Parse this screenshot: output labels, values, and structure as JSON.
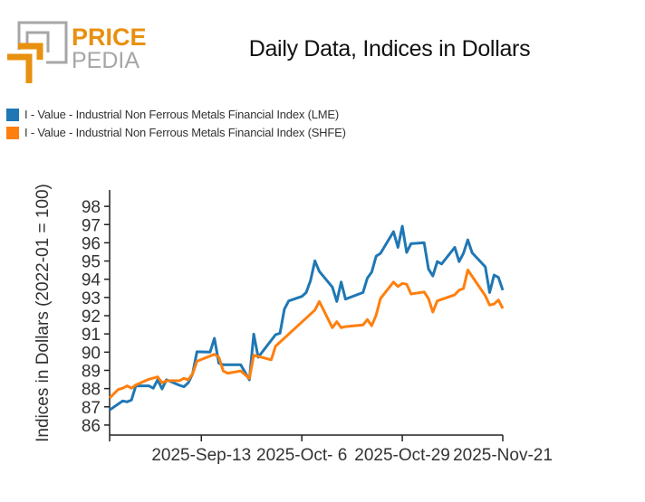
{
  "brand": {
    "line1": "PRICE",
    "line2": "PEDIA",
    "orange": "#e8900f",
    "gray": "#a6a6a6"
  },
  "chart_data": {
    "type": "line",
    "title": "Daily Data, Indices in Dollars",
    "xlabel": "",
    "ylabel": "Indices in Dollars (2022-01 = 100)",
    "xlim": [
      "2025-08-23",
      "2025-11-21"
    ],
    "ylim": [
      85.45,
      98.9
    ],
    "x_ticks": [
      "2025-Sep-13",
      "2025-Oct- 6",
      "2025-Oct-29",
      "2025-Nov-21"
    ],
    "x_tick_dates": [
      "2025-09-13",
      "2025-10-06",
      "2025-10-29",
      "2025-11-21"
    ],
    "y_ticks": [
      86,
      87,
      88,
      89,
      90,
      91,
      92,
      93,
      94,
      95,
      96,
      97,
      98
    ],
    "grid": false,
    "legend_position": "top-left",
    "series": [
      {
        "name": "I - Value - Industrial Non Ferrous Metals Financial Index (LME)",
        "color": "#1f77b4",
        "x": [
          "2025-08-23",
          "2025-08-26",
          "2025-08-27",
          "2025-08-28",
          "2025-08-29",
          "2025-09-01",
          "2025-09-02",
          "2025-09-03",
          "2025-09-04",
          "2025-09-05",
          "2025-09-08",
          "2025-09-09",
          "2025-09-10",
          "2025-09-11",
          "2025-09-12",
          "2025-09-15",
          "2025-09-16",
          "2025-09-17",
          "2025-09-18",
          "2025-09-22",
          "2025-09-24",
          "2025-09-25",
          "2025-09-26",
          "2025-09-30",
          "2025-10-01",
          "2025-10-02",
          "2025-10-03",
          "2025-10-06",
          "2025-10-07",
          "2025-10-08",
          "2025-10-09",
          "2025-10-10",
          "2025-10-13",
          "2025-10-14",
          "2025-10-15",
          "2025-10-16",
          "2025-10-20",
          "2025-10-21",
          "2025-10-22",
          "2025-10-23",
          "2025-10-24",
          "2025-10-27",
          "2025-10-28",
          "2025-10-29",
          "2025-10-30",
          "2025-10-31",
          "2025-11-03",
          "2025-11-04",
          "2025-11-05",
          "2025-11-06",
          "2025-11-07",
          "2025-11-10",
          "2025-11-11",
          "2025-11-12",
          "2025-11-13",
          "2025-11-14",
          "2025-11-17",
          "2025-11-18",
          "2025-11-19",
          "2025-11-20",
          "2025-11-21"
        ],
        "y": [
          86.83,
          87.32,
          87.27,
          87.37,
          88.15,
          88.15,
          88.02,
          88.48,
          87.98,
          88.48,
          88.18,
          88.1,
          88.32,
          88.81,
          90.02,
          90.0,
          90.76,
          89.39,
          89.31,
          89.31,
          88.48,
          90.99,
          89.72,
          90.96,
          91.04,
          92.36,
          92.81,
          93.06,
          93.27,
          93.93,
          95.01,
          94.43,
          93.57,
          92.78,
          93.85,
          92.91,
          93.27,
          94.06,
          94.39,
          95.26,
          95.42,
          96.61,
          95.75,
          96.91,
          95.47,
          95.95,
          96.0,
          94.56,
          94.18,
          94.97,
          94.84,
          95.75,
          94.97,
          95.42,
          96.16,
          95.45,
          94.68,
          93.27,
          94.23,
          94.1,
          93.4
        ]
      },
      {
        "name": "I - Value - Industrial Non Ferrous Metals Financial Index (SHFE)",
        "color": "#ff7f0e",
        "x": [
          "2025-08-23",
          "2025-08-25",
          "2025-08-26",
          "2025-08-27",
          "2025-08-28",
          "2025-08-29",
          "2025-09-01",
          "2025-09-03",
          "2025-09-04",
          "2025-09-05",
          "2025-09-08",
          "2025-09-09",
          "2025-09-10",
          "2025-09-11",
          "2025-09-12",
          "2025-09-16",
          "2025-09-17",
          "2025-09-18",
          "2025-09-19",
          "2025-09-22",
          "2025-09-24",
          "2025-09-25",
          "2025-09-29",
          "2025-09-30",
          "2025-10-09",
          "2025-10-10",
          "2025-10-13",
          "2025-10-14",
          "2025-10-15",
          "2025-10-16",
          "2025-10-20",
          "2025-10-21",
          "2025-10-22",
          "2025-10-23",
          "2025-10-24",
          "2025-10-27",
          "2025-10-28",
          "2025-10-29",
          "2025-10-30",
          "2025-10-31",
          "2025-11-03",
          "2025-11-04",
          "2025-11-05",
          "2025-11-06",
          "2025-11-10",
          "2025-11-11",
          "2025-11-12",
          "2025-11-13",
          "2025-11-17",
          "2025-11-18",
          "2025-11-19",
          "2025-11-20",
          "2025-11-21"
        ],
        "y": [
          87.49,
          87.95,
          88.02,
          88.15,
          88.02,
          88.2,
          88.51,
          88.64,
          88.32,
          88.43,
          88.44,
          88.56,
          88.48,
          88.81,
          89.5,
          89.88,
          89.72,
          88.97,
          88.84,
          88.97,
          88.56,
          89.83,
          89.58,
          90.33,
          92.31,
          92.78,
          91.34,
          91.67,
          91.34,
          91.4,
          91.49,
          91.79,
          91.45,
          92.03,
          92.94,
          93.85,
          93.6,
          93.77,
          93.73,
          93.19,
          93.3,
          92.94,
          92.2,
          92.81,
          93.15,
          93.4,
          93.49,
          94.51,
          93.1,
          92.58,
          92.64,
          92.86,
          92.4
        ]
      }
    ]
  }
}
